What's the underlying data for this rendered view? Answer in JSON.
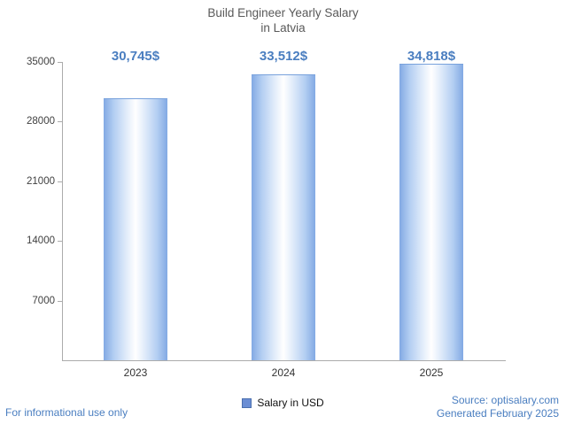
{
  "title": {
    "line1": "Build Engineer Yearly Salary",
    "line2": "in Latvia"
  },
  "chart_data": {
    "type": "bar",
    "title": "Build Engineer Yearly Salary in Latvia",
    "categories": [
      "2023",
      "2024",
      "2025"
    ],
    "values": [
      30745,
      33512,
      34818
    ],
    "value_labels": [
      "30,745$",
      "33,512$",
      "34,818$"
    ],
    "xlabel": "",
    "ylabel": "",
    "ylim": [
      0,
      35000
    ],
    "yticks": [
      7000,
      14000,
      21000,
      28000,
      35000
    ],
    "legend": [
      "Salary in USD"
    ],
    "legend_position": "bottom",
    "grid": false
  },
  "legend": {
    "label": "Salary in USD",
    "marker_color": "#6b8ed4"
  },
  "footer": {
    "disclaimer": "For informational use only",
    "source": "Source: optisalary.com",
    "generated": "Generated February 2025"
  },
  "colors": {
    "title_text": "#595959",
    "axis_text": "#404040",
    "value_label": "#4a7ec0",
    "footer_text": "#4a7ec0",
    "axis_line": "#ababab",
    "bar_edge": "#82a9e3",
    "bar_center": "#ffffff"
  }
}
